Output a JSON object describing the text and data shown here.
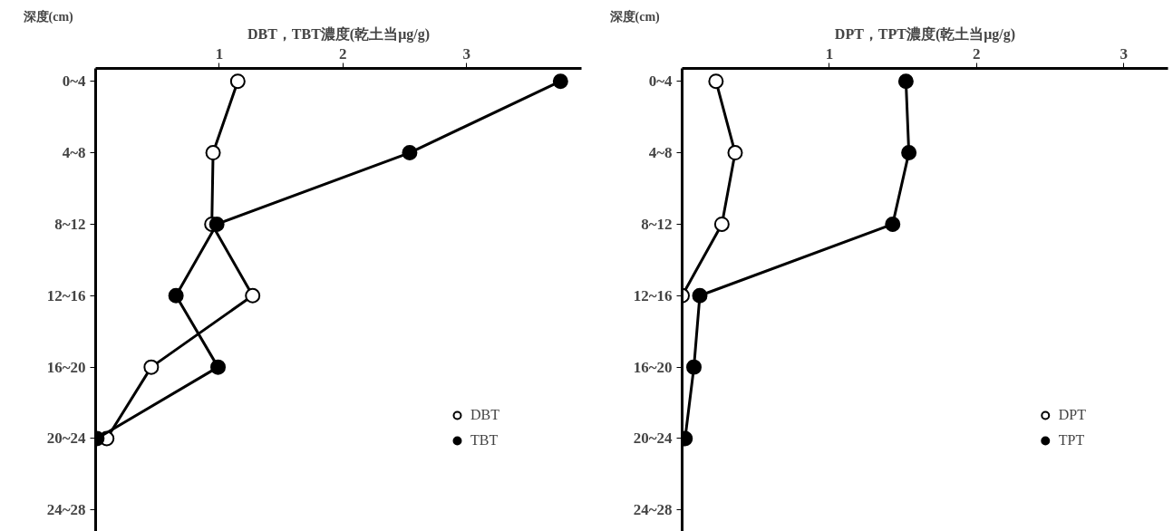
{
  "chart_data": [
    {
      "type": "line",
      "xlabel": "DBT，TBT濃度(乾土当μg/g)",
      "ylabel": "深度(cm)",
      "orientation": "horizontal",
      "categories": [
        "0~4",
        "4~8",
        "8~12",
        "12~16",
        "16~20",
        "20~24",
        "24~28"
      ],
      "xlim": [
        0,
        3.93
      ],
      "xticks": [
        1,
        2,
        3
      ],
      "grid": false,
      "legend": "bottom right",
      "marker": "circle",
      "line_style": "solid",
      "series": [
        {
          "name": "DBT",
          "color": "#ffffff",
          "values": [
            1.15,
            0.95,
            0.94,
            1.27,
            0.45,
            0.09,
            null
          ]
        },
        {
          "name": "TBT",
          "color": "#000000",
          "values": [
            3.76,
            2.54,
            0.98,
            0.65,
            0.99,
            0.01,
            null
          ]
        }
      ]
    },
    {
      "type": "line",
      "xlabel": "DPT，TPT濃度(乾土当μg/g)",
      "ylabel": "深度(cm)",
      "orientation": "horizontal",
      "categories": [
        "0~4",
        "4~8",
        "8~12",
        "12~16",
        "16~20",
        "20~24",
        "24~28"
      ],
      "xlim": [
        0,
        3.3
      ],
      "xticks": [
        1,
        2,
        3
      ],
      "grid": false,
      "legend": "bottom right",
      "marker": "circle",
      "line_style": "solid",
      "series": [
        {
          "name": "DPT",
          "color": "#ffffff",
          "values": [
            0.23,
            0.36,
            0.27,
            0.0,
            null,
            null,
            null
          ]
        },
        {
          "name": "TPT",
          "color": "#000000",
          "values": [
            1.52,
            1.54,
            1.43,
            0.12,
            0.08,
            0.02,
            null
          ]
        }
      ]
    }
  ]
}
